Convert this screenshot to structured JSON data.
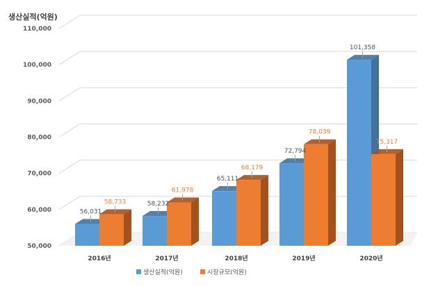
{
  "chart_data": {
    "type": "bar",
    "title": "",
    "ylabel": "생산실적(억원)",
    "xlabel": "",
    "categories": [
      "2016년",
      "2017년",
      "2018년",
      "2019년",
      "2020년"
    ],
    "series": [
      {
        "name": "생산실적(억원)",
        "color": "#5B9BD5",
        "side": "#41719C",
        "values": [
          56031,
          58232,
          65111,
          72794,
          101358
        ],
        "labels": [
          "56,031",
          "58,232",
          "65,111",
          "72,794",
          "101,358"
        ],
        "label_color": "#44546A"
      },
      {
        "name": "시장규모(억원)",
        "color": "#ED7D31",
        "side": "#A5511D",
        "values": [
          58733,
          61978,
          68179,
          78039,
          75317
        ],
        "labels": [
          "58,733",
          "61,978",
          "68,179",
          "78,039",
          "75,317"
        ],
        "label_color": "#ED7D31"
      }
    ],
    "ylim": [
      50000,
      110000
    ],
    "yticks": [
      50000,
      60000,
      70000,
      80000,
      90000,
      100000,
      110000
    ],
    "ytick_labels": [
      "50,000",
      "60,000",
      "70,000",
      "80,000",
      "90,000",
      "100,000",
      "110,000"
    ],
    "grid": true,
    "legend": "bottom"
  }
}
